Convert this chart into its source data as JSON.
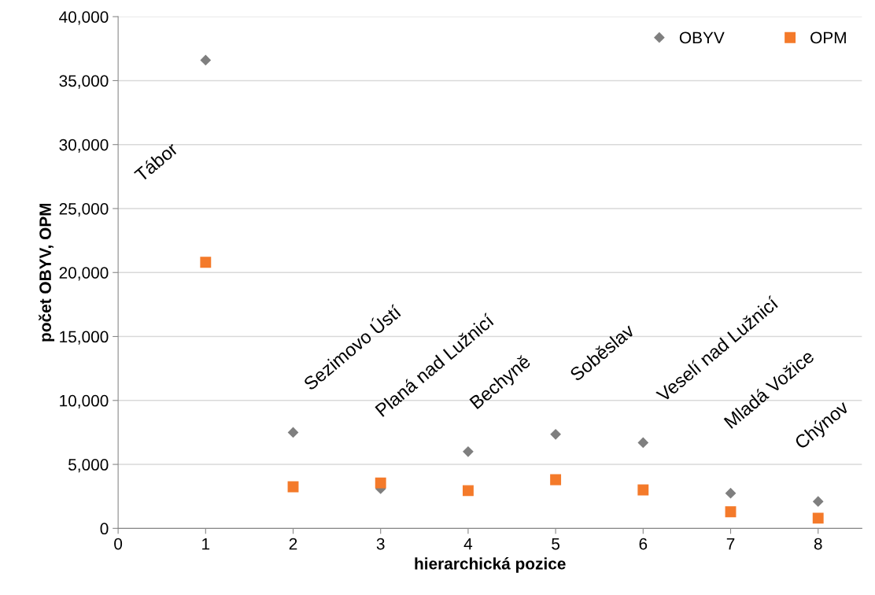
{
  "chart_data": {
    "type": "scatter",
    "xlabel": "hierarchická pozice",
    "ylabel": "počet OBYV, OPM",
    "x": [
      1,
      2,
      3,
      4,
      5,
      6,
      7,
      8
    ],
    "series": [
      {
        "name": "OBYV",
        "color": "#7f7f7f",
        "marker": "diamond",
        "values": [
          36600,
          7500,
          3100,
          6000,
          7350,
          6700,
          2750,
          2100
        ]
      },
      {
        "name": "OPM",
        "color": "#f47a2a",
        "marker": "square",
        "values": [
          20800,
          3250,
          3550,
          2950,
          3800,
          3000,
          1300,
          800
        ]
      }
    ],
    "xlim": [
      0,
      8.5
    ],
    "xticks": [
      0,
      1,
      2,
      3,
      4,
      5,
      6,
      7,
      8
    ],
    "ylim": [
      0,
      40000
    ],
    "yticks": [
      {
        "value": 0,
        "label": "0"
      },
      {
        "value": 5000,
        "label": "5,000"
      },
      {
        "value": 10000,
        "label": "10,000"
      },
      {
        "value": 15000,
        "label": "15,000"
      },
      {
        "value": 20000,
        "label": "20,000"
      },
      {
        "value": 25000,
        "label": "25,000"
      },
      {
        "value": 30000,
        "label": "30,000"
      },
      {
        "value": 35000,
        "label": "35,000"
      },
      {
        "value": 40000,
        "label": "40,000"
      }
    ],
    "grid": "y",
    "legend": "top right",
    "annotations": [
      "Tábor",
      "Sezimovo Ústí",
      "Planá nad Lužnicí",
      "Bechyně",
      "Soběslav",
      "Veselí nad Lužnicí",
      "Mladá Vožice",
      "Chýnov"
    ]
  }
}
